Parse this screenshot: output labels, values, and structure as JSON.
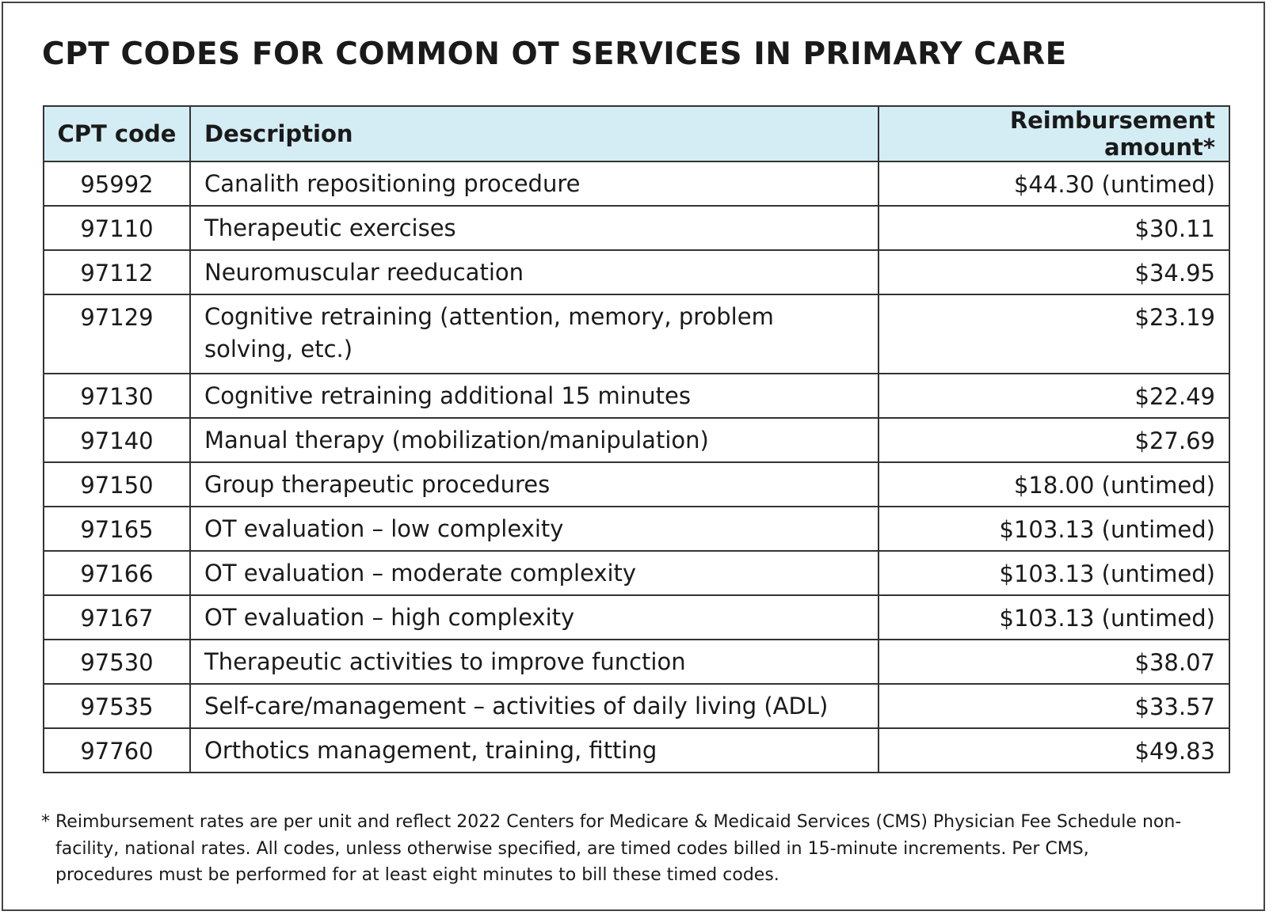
{
  "title": "CPT CODES FOR COMMON OT SERVICES IN PRIMARY CARE",
  "colors": {
    "header_bg": "#d4edf4",
    "border": "#333333"
  },
  "table": {
    "headers": [
      "CPT code",
      "Description",
      "Reimbursement amount*"
    ],
    "rows": [
      {
        "code": "95992",
        "description": "Canalith repositioning procedure",
        "amount": "$44.30 (untimed)"
      },
      {
        "code": "97110",
        "description": "Therapeutic exercises",
        "amount": "$30.11"
      },
      {
        "code": "97112",
        "description": "Neuromuscular reeducation",
        "amount": "$34.95"
      },
      {
        "code": "97129",
        "description": "Cognitive retraining (attention, memory, problem solving, etc.)",
        "amount": "$23.19"
      },
      {
        "code": "97130",
        "description": "Cognitive retraining additional 15 minutes",
        "amount": "$22.49"
      },
      {
        "code": "97140",
        "description": "Manual therapy (mobilization/manipulation)",
        "amount": "$27.69"
      },
      {
        "code": "97150",
        "description": "Group therapeutic procedures",
        "amount": "$18.00 (untimed)"
      },
      {
        "code": "97165",
        "description": "OT evaluation – low complexity",
        "amount": "$103.13 (untimed)"
      },
      {
        "code": "97166",
        "description": "OT evaluation – moderate complexity",
        "amount": "$103.13 (untimed)"
      },
      {
        "code": "97167",
        "description": "OT evaluation – high complexity",
        "amount": "$103.13 (untimed)"
      },
      {
        "code": "97530",
        "description": "Therapeutic activities to improve function",
        "amount": "$38.07"
      },
      {
        "code": "97535",
        "description": "Self-care/management – activities of daily living (ADL)",
        "amount": "$33.57"
      },
      {
        "code": "97760",
        "description": "Orthotics management, training, fitting",
        "amount": "$49.83"
      }
    ]
  },
  "footnote": {
    "marker": "*",
    "text": "Reimbursement rates are per unit and reflect 2022 Centers for Medicare & Medicaid Services (CMS) Physician Fee Schedule non-facility, national rates. All codes, unless otherwise specified, are timed codes billed in 15-minute increments. Per CMS, procedures must be performed for at least eight minutes to bill these timed codes."
  }
}
